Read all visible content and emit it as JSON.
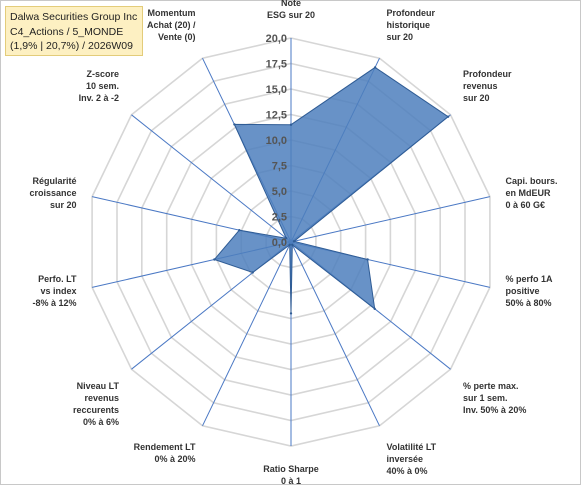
{
  "chart_data": {
    "type": "radar",
    "title_lines": [
      "Dalwa Securities Group Inc",
      "C4_Actions / 5_MONDE",
      "(1,9% | 20,7%) / 2026W09"
    ],
    "axes": [
      [
        "Note",
        "ESG sur 20"
      ],
      [
        "Profondeur",
        "historique",
        "sur 20"
      ],
      [
        "Profondeur",
        "revenus",
        "sur 20"
      ],
      [
        "Capi. bours.",
        "en MdEUR",
        "0 à 60 G€"
      ],
      [
        "% perfo 1A",
        "positive",
        "50% à 80%"
      ],
      [
        "% perte max.",
        "sur 1 sem.",
        "Inv. 50% à 20%"
      ],
      [
        "Volatilité LT",
        "inversée",
        "40% à 0%"
      ],
      [
        "Ratio Sharpe",
        "0 à 1"
      ],
      [
        "Rendement LT",
        "0% à 20%"
      ],
      [
        "Niveau LT",
        "revenus",
        "reccurents",
        "0% à 6%"
      ],
      [
        "Perfo. LT",
        "vs index",
        "-8% à 12%"
      ],
      [
        "Régularité",
        "croissance",
        "sur 20"
      ],
      [
        "Z-score",
        "10 sem.",
        "Inv. 2 à -2"
      ],
      [
        "Momentum",
        "Achat (20) /",
        "Vente (0)"
      ]
    ],
    "values": [
      11.5,
      19.0,
      19.7,
      0.3,
      7.7,
      10.5,
      0.3,
      7.0,
      0.3,
      4.8,
      7.7,
      5.2,
      0.6,
      12.8
    ],
    "rmin": 0,
    "rmax": 20,
    "ticks": [
      "0,0",
      "2,5",
      "5,0",
      "7,5",
      "10,0",
      "12,5",
      "15,0",
      "17,5",
      "20,0"
    ],
    "grid": true,
    "fill_color": "#4e7fbd",
    "stroke_color": "#2f5c95",
    "axis_color": "#4a78c4",
    "grid_color": "#d6d6d6"
  }
}
